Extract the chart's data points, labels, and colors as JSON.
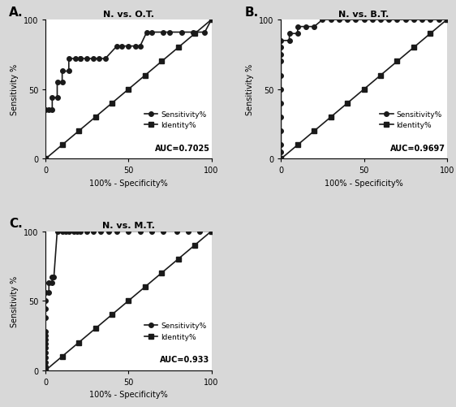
{
  "panels": [
    {
      "label": "A.",
      "title": "N. vs. O.T.",
      "auc": "AUC=0.7025",
      "roc_x": [
        0,
        0,
        2,
        4,
        4,
        7,
        7,
        10,
        10,
        14,
        14,
        18,
        21,
        21,
        25,
        29,
        32,
        36,
        43,
        46,
        50,
        54,
        57,
        61,
        64,
        71,
        75,
        82,
        89,
        96,
        100
      ],
      "roc_y": [
        0,
        35,
        35,
        35,
        44,
        44,
        55,
        55,
        63,
        63,
        72,
        72,
        72,
        72,
        72,
        72,
        72,
        72,
        81,
        81,
        81,
        81,
        81,
        91,
        91,
        91,
        91,
        91,
        91,
        91,
        100
      ],
      "identity_x": [
        0,
        10,
        20,
        30,
        40,
        50,
        60,
        70,
        80,
        90,
        100
      ],
      "identity_y": [
        0,
        10,
        20,
        30,
        40,
        50,
        60,
        70,
        80,
        90,
        100
      ]
    },
    {
      "label": "B.",
      "title": "N. vs. B.T.",
      "auc": "AUC=0.9697",
      "roc_x": [
        0,
        0,
        0,
        0,
        0,
        0,
        0,
        0,
        0,
        0,
        0,
        0,
        5,
        5,
        10,
        10,
        15,
        20,
        25,
        30,
        35,
        40,
        45,
        50,
        55,
        60,
        65,
        70,
        75,
        80,
        85,
        90,
        95,
        100
      ],
      "roc_y": [
        0,
        5,
        10,
        20,
        30,
        40,
        50,
        60,
        70,
        75,
        80,
        85,
        85,
        90,
        90,
        95,
        95,
        95,
        100,
        100,
        100,
        100,
        100,
        100,
        100,
        100,
        100,
        100,
        100,
        100,
        100,
        100,
        100,
        100
      ],
      "identity_x": [
        0,
        10,
        20,
        30,
        40,
        50,
        60,
        70,
        80,
        90,
        100
      ],
      "identity_y": [
        0,
        10,
        20,
        30,
        40,
        50,
        60,
        70,
        80,
        90,
        100
      ]
    },
    {
      "label": "C.",
      "title": "N. vs. M.T.",
      "auc": "AUC=0.933",
      "roc_x": [
        0,
        0,
        0,
        0,
        0,
        0,
        0,
        0,
        0,
        0,
        0,
        0,
        0,
        0,
        2,
        2,
        4,
        4,
        5,
        7,
        10,
        12,
        14,
        17,
        19,
        21,
        25,
        29,
        33,
        38,
        43,
        50,
        57,
        64,
        71,
        79,
        86,
        93,
        100
      ],
      "roc_y": [
        0,
        3,
        6,
        9,
        13,
        16,
        19,
        22,
        25,
        28,
        38,
        44,
        50,
        56,
        56,
        63,
        63,
        67,
        67,
        100,
        100,
        100,
        100,
        100,
        100,
        100,
        100,
        100,
        100,
        100,
        100,
        100,
        100,
        100,
        100,
        100,
        100,
        100,
        100
      ],
      "identity_x": [
        0,
        10,
        20,
        30,
        40,
        50,
        60,
        70,
        80,
        90,
        100
      ],
      "identity_y": [
        0,
        10,
        20,
        30,
        40,
        50,
        60,
        70,
        80,
        90,
        100
      ]
    }
  ],
  "line_color": "#1a1a1a",
  "marker_circle": "o",
  "marker_square": "s",
  "markersize": 4,
  "linewidth": 1.2,
  "xlabel": "100% - Specificity%",
  "ylabel": "Sensitivity %",
  "legend_sensitivity": "Sensitivity%",
  "legend_identity": "Identity%",
  "xlim": [
    0,
    100
  ],
  "ylim": [
    0,
    100
  ],
  "xticks": [
    0,
    50,
    100
  ],
  "yticks": [
    0,
    50,
    100
  ],
  "background_color": "#ffffff",
  "outer_bg": "#d8d8d8"
}
